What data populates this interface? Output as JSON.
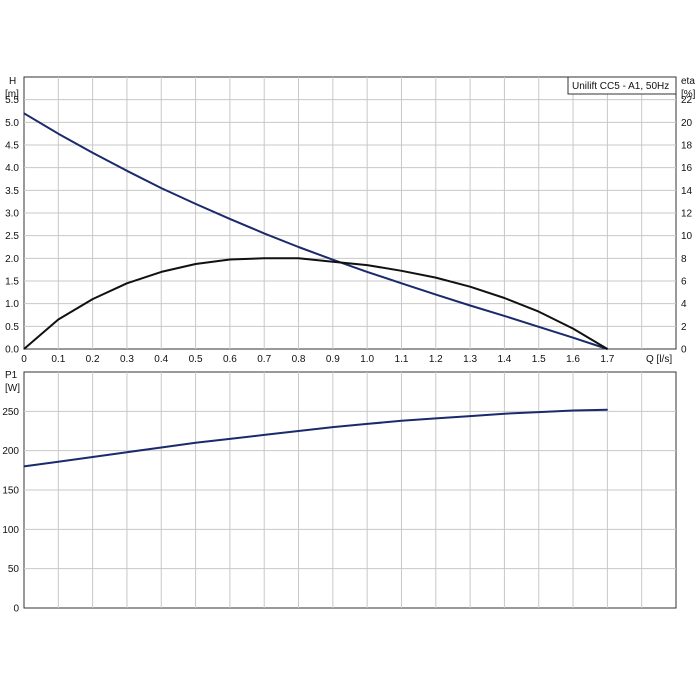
{
  "chart_data": [
    {
      "type": "line",
      "legend": "Unilift CC5 - A1, 50Hz",
      "x_unit_label": "Q [l/s]",
      "left_axis": {
        "label": "H",
        "unit": "[m]",
        "ylim": [
          0,
          6
        ]
      },
      "right_axis": {
        "label": "eta",
        "unit": "[%]",
        "ylim": [
          0,
          24
        ]
      },
      "xlim": [
        0,
        1.9
      ],
      "x_ticks": [
        0,
        0.1,
        0.2,
        0.3,
        0.4,
        0.5,
        0.6,
        0.7,
        0.8,
        0.9,
        1.0,
        1.1,
        1.2,
        1.3,
        1.4,
        1.5,
        1.6,
        1.7
      ],
      "x_tick_labels": [
        "0",
        "0.1",
        "0.2",
        "0.3",
        "0.4",
        "0.5",
        "0.6",
        "0.7",
        "0.8",
        "0.9",
        "1.0",
        "1.1",
        "1.2",
        "1.3",
        "1.4",
        "1.5",
        "1.6",
        "1.7"
      ],
      "left_ticks": [
        0,
        0.5,
        1.0,
        1.5,
        2.0,
        2.5,
        3.0,
        3.5,
        4.0,
        4.5,
        5.0,
        5.5
      ],
      "left_tick_labels": [
        "0.0",
        "0.5",
        "1.0",
        "1.5",
        "2.0",
        "2.5",
        "3.0",
        "3.5",
        "4.0",
        "4.5",
        "5.0",
        "5.5"
      ],
      "right_ticks": [
        0,
        2,
        4,
        6,
        8,
        10,
        12,
        14,
        16,
        18,
        20,
        22
      ],
      "right_tick_labels": [
        "0",
        "2",
        "4",
        "6",
        "8",
        "10",
        "12",
        "14",
        "16",
        "18",
        "20",
        "22"
      ],
      "grid": true,
      "series": [
        {
          "axis": "left",
          "color": "#1a2a6c",
          "x": [
            0,
            0.1,
            0.2,
            0.3,
            0.4,
            0.5,
            0.6,
            0.7,
            0.8,
            0.9,
            1.0,
            1.1,
            1.2,
            1.3,
            1.4,
            1.5,
            1.6,
            1.7
          ],
          "y": [
            5.2,
            4.75,
            4.33,
            3.93,
            3.55,
            3.2,
            2.87,
            2.55,
            2.25,
            1.97,
            1.7,
            1.45,
            1.2,
            0.96,
            0.73,
            0.49,
            0.25,
            0.0
          ]
        },
        {
          "axis": "right",
          "color": "#111111",
          "x": [
            0,
            0.1,
            0.2,
            0.3,
            0.4,
            0.5,
            0.6,
            0.7,
            0.8,
            0.9,
            1.0,
            1.1,
            1.2,
            1.3,
            1.4,
            1.5,
            1.6,
            1.7
          ],
          "y": [
            0,
            2.6,
            4.4,
            5.8,
            6.8,
            7.5,
            7.9,
            8.0,
            8.0,
            7.7,
            7.4,
            6.9,
            6.3,
            5.5,
            4.5,
            3.3,
            1.8,
            0.0
          ]
        }
      ]
    },
    {
      "type": "line",
      "left_axis": {
        "label": "P1",
        "unit": "[W]",
        "ylim": [
          0,
          300
        ]
      },
      "xlim": [
        0,
        1.9
      ],
      "x_ticks": [
        0,
        0.1,
        0.2,
        0.3,
        0.4,
        0.5,
        0.6,
        0.7,
        0.8,
        0.9,
        1.0,
        1.1,
        1.2,
        1.3,
        1.4,
        1.5,
        1.6,
        1.7
      ],
      "left_ticks": [
        0,
        50,
        100,
        150,
        200,
        250
      ],
      "left_tick_labels": [
        "0",
        "50",
        "100",
        "150",
        "200",
        "250"
      ],
      "grid": true,
      "series": [
        {
          "axis": "left",
          "color": "#1a2a6c",
          "x": [
            0,
            0.1,
            0.2,
            0.3,
            0.4,
            0.5,
            0.6,
            0.7,
            0.8,
            0.9,
            1.0,
            1.1,
            1.2,
            1.3,
            1.4,
            1.5,
            1.6,
            1.7
          ],
          "y": [
            180,
            186,
            192,
            198,
            204,
            210,
            215,
            220,
            225,
            230,
            234,
            238,
            241,
            244,
            247,
            249,
            251,
            252
          ]
        }
      ]
    }
  ]
}
